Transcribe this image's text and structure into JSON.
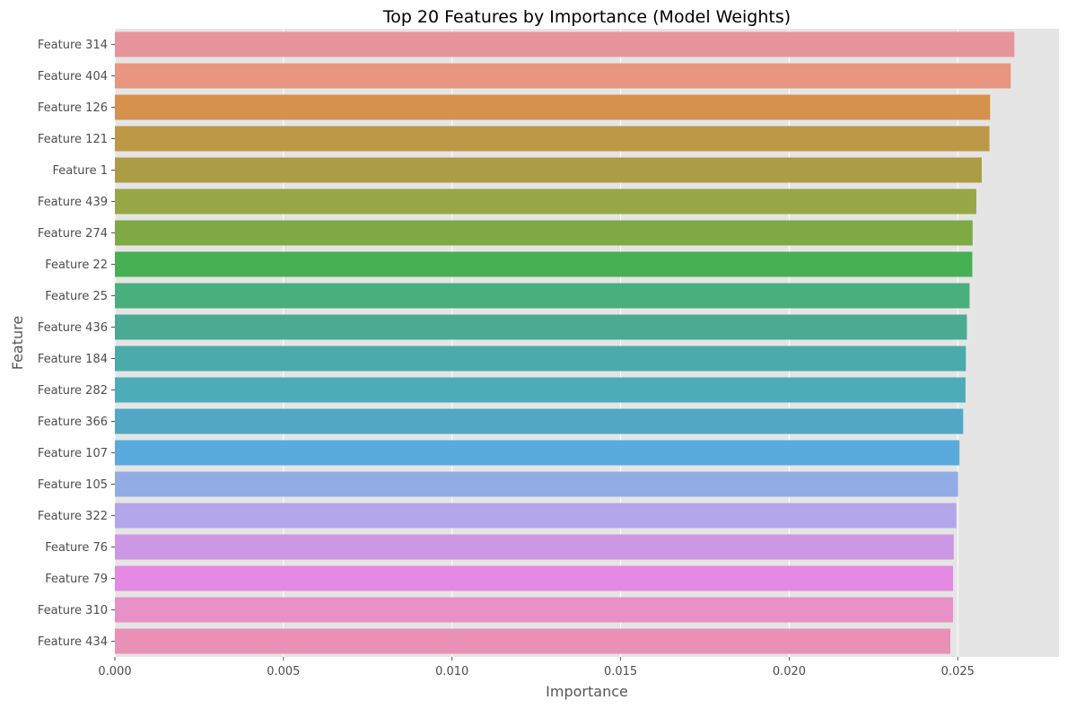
{
  "chart_data": {
    "type": "bar",
    "orientation": "horizontal",
    "title": "Top 20 Features by Importance (Model Weights)",
    "xlabel": "Importance",
    "ylabel": "Feature",
    "xlim": [
      0,
      0.028
    ],
    "xticks": [
      "0.000",
      "0.005",
      "0.010",
      "0.015",
      "0.020",
      "0.025"
    ],
    "grid": true,
    "categories": [
      "Feature 314",
      "Feature 404",
      "Feature 126",
      "Feature 121",
      "Feature 1",
      "Feature 439",
      "Feature 274",
      "Feature 22",
      "Feature 25",
      "Feature 436",
      "Feature 184",
      "Feature 282",
      "Feature 366",
      "Feature 107",
      "Feature 105",
      "Feature 322",
      "Feature 76",
      "Feature 79",
      "Feature 310",
      "Feature 434"
    ],
    "values": [
      0.02668,
      0.02657,
      0.02596,
      0.02594,
      0.02571,
      0.02555,
      0.02544,
      0.02543,
      0.02535,
      0.02527,
      0.02524,
      0.02523,
      0.02516,
      0.02505,
      0.02501,
      0.02496,
      0.02488,
      0.02486,
      0.02486,
      0.02478
    ],
    "colors": [
      "#e8949c",
      "#e89680",
      "#d6914c",
      "#bd9947",
      "#ab9c45",
      "#97a745",
      "#7ea944",
      "#46b052",
      "#49af7c",
      "#4aab92",
      "#4babaa",
      "#4cacb7",
      "#50a8c4",
      "#58abdc",
      "#92ade6",
      "#b3a6ea",
      "#cc97e5",
      "#e58ae2",
      "#e890c8",
      "#e890b6"
    ]
  }
}
